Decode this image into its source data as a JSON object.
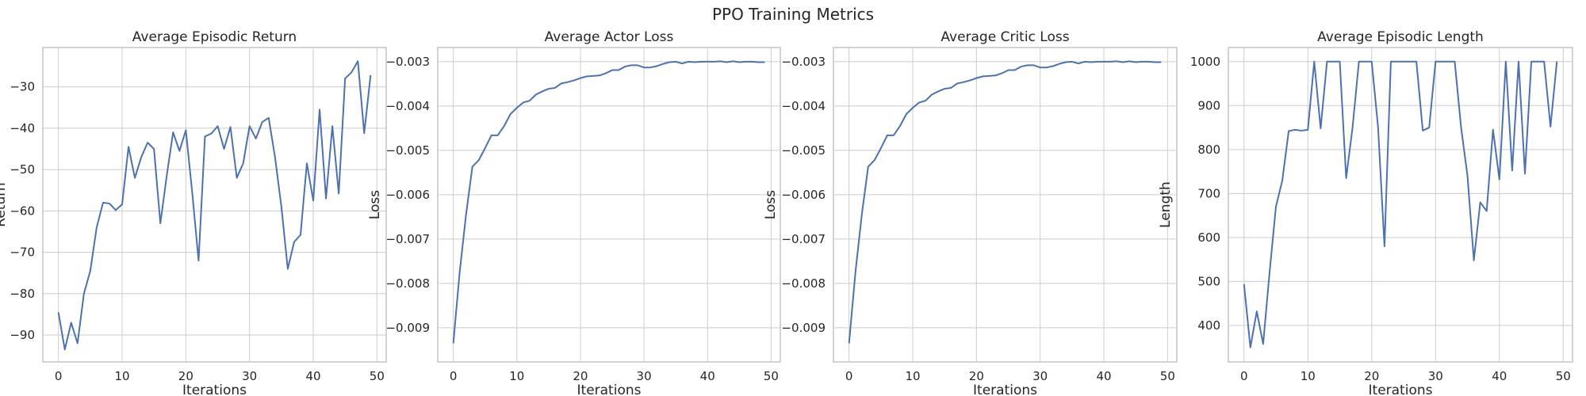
{
  "figure": {
    "title": "PPO Training Metrics"
  },
  "colors": {
    "series": "#4c72b0",
    "grid": "#cccccc",
    "frame": "#c8c8c8"
  },
  "chart_data": [
    {
      "type": "line",
      "title": "Average Episodic Return",
      "xlabel": "Iterations",
      "ylabel": "Return",
      "xlim": [
        -2.45,
        51.45
      ],
      "ylim": [
        -96.5,
        -20.5
      ],
      "xticks": [
        0,
        10,
        20,
        30,
        40,
        50
      ],
      "yticks": [
        -90,
        -80,
        -70,
        -60,
        -50,
        -40,
        -30
      ],
      "grid": true,
      "x": [
        0,
        1,
        2,
        3,
        4,
        5,
        6,
        7,
        8,
        9,
        10,
        11,
        12,
        13,
        14,
        15,
        16,
        17,
        18,
        19,
        20,
        21,
        22,
        23,
        24,
        25,
        26,
        27,
        28,
        29,
        30,
        31,
        32,
        33,
        34,
        35,
        36,
        37,
        38,
        39,
        40,
        41,
        42,
        43,
        44,
        45,
        46,
        47,
        48,
        49
      ],
      "series": [
        {
          "values": [
            -84.5,
            -93.5,
            -87.0,
            -92.0,
            -80.0,
            -74.5,
            -64.0,
            -58.0,
            -58.2,
            -59.8,
            -58.4,
            -44.5,
            -52.0,
            -47.0,
            -43.5,
            -45.0,
            -63.0,
            -51.5,
            -41.0,
            -45.5,
            -40.5,
            -55.5,
            -72.0,
            -42.0,
            -41.3,
            -39.5,
            -45.0,
            -39.7,
            -52.0,
            -48.5,
            -39.5,
            -42.5,
            -38.5,
            -37.5,
            -47.0,
            -59.0,
            -74.0,
            -67.5,
            -65.8,
            -48.5,
            -57.5,
            -35.5,
            -57.0,
            -39.5,
            -55.8,
            -28.0,
            -26.5,
            -23.8,
            -41.2,
            -27.2
          ]
        }
      ]
    },
    {
      "type": "line",
      "title": "Average Actor Loss",
      "xlabel": "Iterations",
      "ylabel": "Loss",
      "xlim": [
        -2.45,
        51.45
      ],
      "ylim": [
        -0.00977,
        -0.00268
      ],
      "xticks": [
        0,
        10,
        20,
        30,
        40,
        50
      ],
      "yticks": [
        -0.009,
        -0.008,
        -0.007,
        -0.006,
        -0.005,
        -0.004,
        -0.003
      ],
      "grid": true,
      "x": [
        0,
        1,
        2,
        3,
        4,
        5,
        6,
        7,
        8,
        9,
        10,
        11,
        12,
        13,
        14,
        15,
        16,
        17,
        18,
        19,
        20,
        21,
        22,
        23,
        24,
        25,
        26,
        27,
        28,
        29,
        30,
        31,
        32,
        33,
        34,
        35,
        36,
        37,
        38,
        39,
        40,
        41,
        42,
        43,
        44,
        45,
        46,
        47,
        48,
        49
      ],
      "series": [
        {
          "values": [
            -0.00935,
            -0.00775,
            -0.00645,
            -0.00537,
            -0.00522,
            -0.00495,
            -0.00466,
            -0.00466,
            -0.00445,
            -0.00418,
            -0.00404,
            -0.00392,
            -0.00388,
            -0.00374,
            -0.00367,
            -0.00361,
            -0.00359,
            -0.00349,
            -0.00346,
            -0.00342,
            -0.00337,
            -0.00333,
            -0.00332,
            -0.00331,
            -0.00326,
            -0.00319,
            -0.00319,
            -0.00311,
            -0.00308,
            -0.00308,
            -0.00313,
            -0.00313,
            -0.0031,
            -0.00305,
            -0.00301,
            -0.003,
            -0.00304,
            -0.003,
            -0.00301,
            -0.003,
            -0.003,
            -0.003,
            -0.00299,
            -0.00301,
            -0.00299,
            -0.00301,
            -0.003,
            -0.003,
            -0.00301,
            -0.00301
          ]
        }
      ]
    },
    {
      "type": "line",
      "title": "Average Critic Loss",
      "xlabel": "Iterations",
      "ylabel": "Loss",
      "xlim": [
        -2.45,
        51.45
      ],
      "ylim": [
        -0.00977,
        -0.00268
      ],
      "xticks": [
        0,
        10,
        20,
        30,
        40,
        50
      ],
      "yticks": [
        -0.009,
        -0.008,
        -0.007,
        -0.006,
        -0.005,
        -0.004,
        -0.003
      ],
      "grid": true,
      "x": [
        0,
        1,
        2,
        3,
        4,
        5,
        6,
        7,
        8,
        9,
        10,
        11,
        12,
        13,
        14,
        15,
        16,
        17,
        18,
        19,
        20,
        21,
        22,
        23,
        24,
        25,
        26,
        27,
        28,
        29,
        30,
        31,
        32,
        33,
        34,
        35,
        36,
        37,
        38,
        39,
        40,
        41,
        42,
        43,
        44,
        45,
        46,
        47,
        48,
        49
      ],
      "series": [
        {
          "values": [
            -0.00935,
            -0.00775,
            -0.00645,
            -0.00537,
            -0.00522,
            -0.00495,
            -0.00466,
            -0.00466,
            -0.00445,
            -0.00418,
            -0.00404,
            -0.00392,
            -0.00388,
            -0.00374,
            -0.00367,
            -0.00361,
            -0.00359,
            -0.00349,
            -0.00346,
            -0.00342,
            -0.00337,
            -0.00333,
            -0.00332,
            -0.00331,
            -0.00326,
            -0.00319,
            -0.00319,
            -0.00311,
            -0.00308,
            -0.00308,
            -0.00313,
            -0.00313,
            -0.0031,
            -0.00305,
            -0.00301,
            -0.003,
            -0.00304,
            -0.003,
            -0.00301,
            -0.003,
            -0.003,
            -0.003,
            -0.00299,
            -0.00301,
            -0.00299,
            -0.00301,
            -0.003,
            -0.003,
            -0.00301,
            -0.00301
          ]
        }
      ]
    },
    {
      "type": "line",
      "title": "Average Episodic Length",
      "xlabel": "Iterations",
      "ylabel": "Length",
      "xlim": [
        -2.45,
        51.45
      ],
      "ylim": [
        317,
        1032
      ],
      "xticks": [
        0,
        10,
        20,
        30,
        40,
        50
      ],
      "yticks": [
        400,
        500,
        600,
        700,
        800,
        900,
        1000
      ],
      "grid": true,
      "x": [
        0,
        1,
        2,
        3,
        4,
        5,
        6,
        7,
        8,
        9,
        10,
        11,
        12,
        13,
        14,
        15,
        16,
        17,
        18,
        19,
        20,
        21,
        22,
        23,
        24,
        25,
        26,
        27,
        28,
        29,
        30,
        31,
        32,
        33,
        34,
        35,
        36,
        37,
        38,
        39,
        40,
        41,
        42,
        43,
        44,
        45,
        46,
        47,
        48,
        49
      ],
      "series": [
        {
          "values": [
            494,
            350,
            432,
            358,
            520,
            670,
            730,
            842,
            845,
            843,
            845,
            1000,
            848,
            1000,
            1000,
            1000,
            735,
            850,
            1000,
            1000,
            1000,
            850,
            580,
            1000,
            1000,
            1000,
            1000,
            1000,
            843,
            850,
            1000,
            1000,
            1000,
            1000,
            850,
            740,
            548,
            680,
            660,
            845,
            732,
            1000,
            752,
            1000,
            745,
            1000,
            1000,
            1000,
            852,
            1000
          ]
        }
      ]
    }
  ]
}
